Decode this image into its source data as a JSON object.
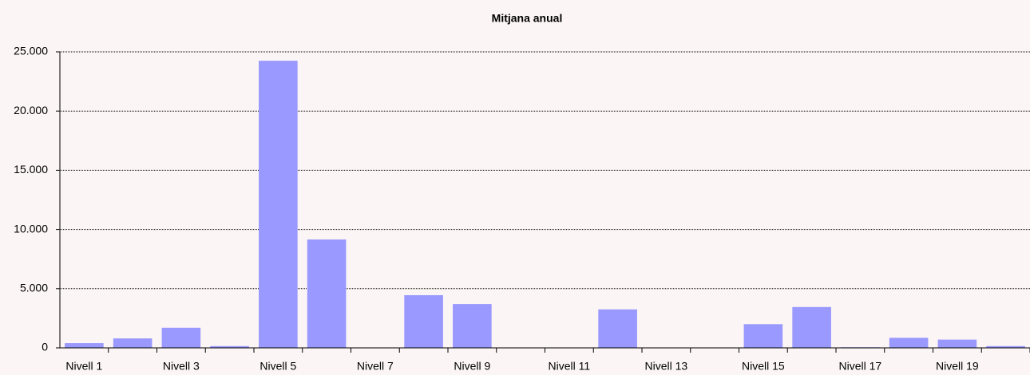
{
  "chart_data": {
    "type": "bar",
    "title": "Mitjana anual",
    "categories": [
      "Nivell 1",
      null,
      "Nivell 3",
      null,
      "Nivell 5",
      null,
      "Nivell 7",
      null,
      "Nivell 9",
      null,
      "Nivell 11",
      null,
      "Nivell 13",
      null,
      "Nivell 15",
      null,
      "Nivell 17",
      null,
      "Nivell 19",
      null
    ],
    "values": [
      400,
      800,
      1700,
      150,
      24250,
      9150,
      0,
      4450,
      3700,
      0,
      0,
      3250,
      0,
      0,
      2000,
      3450,
      50,
      850,
      700,
      150
    ],
    "color": "#9999ff",
    "ylim": [
      0,
      25000
    ],
    "yticks": [
      0,
      {
        "value": 5000,
        "label": "5.000"
      },
      {
        "value": 10000,
        "label": "10.000"
      },
      {
        "value": 15000,
        "label": "15.000"
      },
      {
        "value": 20000,
        "label": "20.000"
      },
      {
        "value": 25000,
        "label": "25.000"
      }
    ],
    "grid": true
  }
}
